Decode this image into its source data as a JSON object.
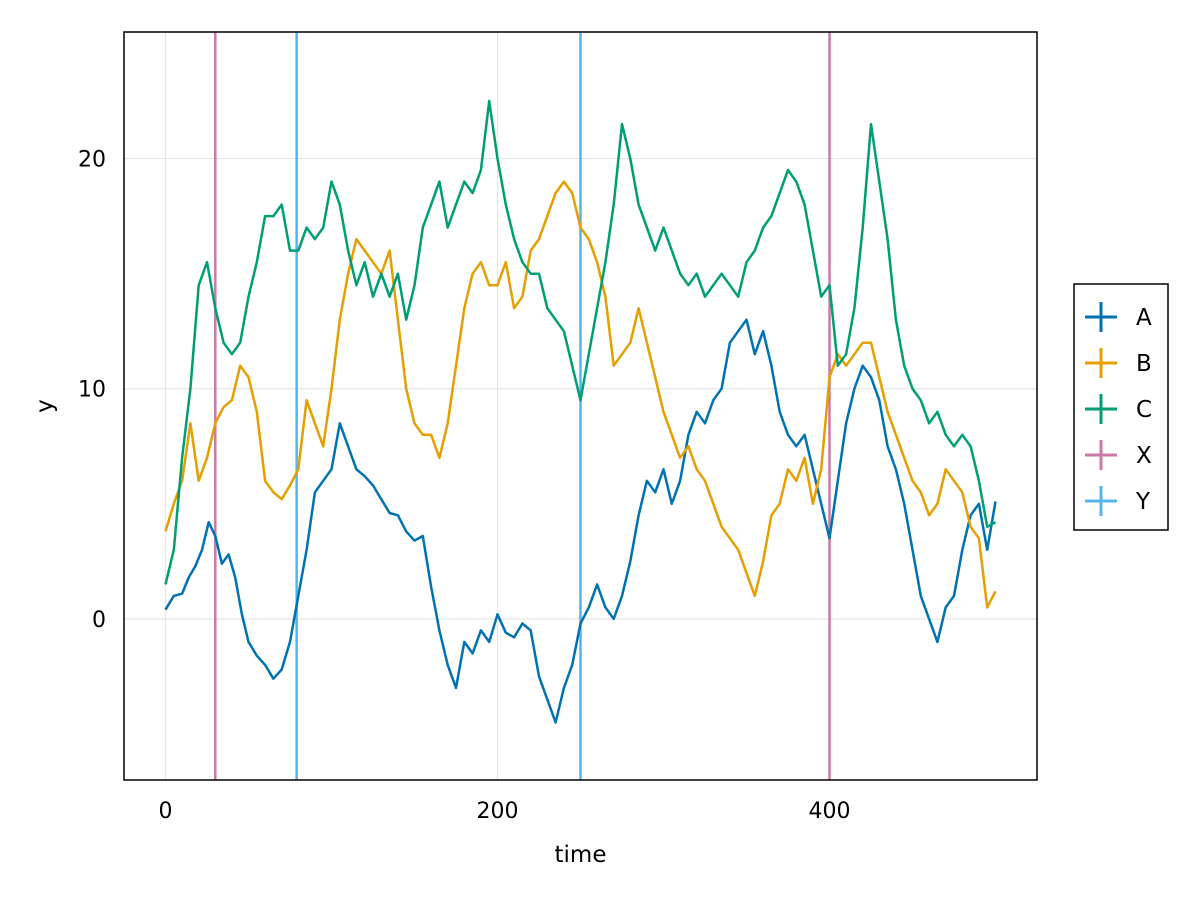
{
  "chart_data": {
    "type": "line",
    "title": "",
    "xlabel": "time",
    "ylabel": "y",
    "xlim": [
      -25,
      525
    ],
    "ylim": [
      -7,
      25.5
    ],
    "xticks": [
      0,
      200,
      400
    ],
    "xtick_labels": [
      "0",
      "200",
      "400"
    ],
    "yticks": [
      0,
      10,
      20
    ],
    "ytick_labels": [
      "0",
      "10",
      "20"
    ],
    "grid": true,
    "legend_position": "right",
    "series": [
      {
        "name": "A",
        "color": "#0072B2",
        "points": [
          [
            0,
            0.4
          ],
          [
            5,
            1.0
          ],
          [
            10,
            1.1
          ],
          [
            14,
            1.8
          ],
          [
            18,
            2.3
          ],
          [
            22,
            3.0
          ],
          [
            26,
            4.2
          ],
          [
            30,
            3.6
          ],
          [
            34,
            2.4
          ],
          [
            38,
            2.8
          ],
          [
            42,
            1.8
          ],
          [
            46,
            0.2
          ],
          [
            50,
            -1.0
          ],
          [
            55,
            -1.6
          ],
          [
            60,
            -2.0
          ],
          [
            65,
            -2.6
          ],
          [
            70,
            -2.2
          ],
          [
            75,
            -1.0
          ],
          [
            80,
            1.0
          ],
          [
            85,
            3.0
          ],
          [
            90,
            5.5
          ],
          [
            95,
            6.0
          ],
          [
            100,
            6.5
          ],
          [
            105,
            8.5
          ],
          [
            110,
            7.5
          ],
          [
            115,
            6.5
          ],
          [
            120,
            6.2
          ],
          [
            125,
            5.8
          ],
          [
            130,
            5.2
          ],
          [
            135,
            4.6
          ],
          [
            140,
            4.5
          ],
          [
            145,
            3.8
          ],
          [
            150,
            3.4
          ],
          [
            155,
            3.6
          ],
          [
            160,
            1.4
          ],
          [
            165,
            -0.5
          ],
          [
            170,
            -2.0
          ],
          [
            175,
            -3.0
          ],
          [
            180,
            -1.0
          ],
          [
            185,
            -1.5
          ],
          [
            190,
            -0.5
          ],
          [
            195,
            -1.0
          ],
          [
            200,
            0.2
          ],
          [
            205,
            -0.6
          ],
          [
            210,
            -0.8
          ],
          [
            215,
            -0.2
          ],
          [
            220,
            -0.5
          ],
          [
            225,
            -2.5
          ],
          [
            230,
            -3.5
          ],
          [
            235,
            -4.5
          ],
          [
            240,
            -3.0
          ],
          [
            245,
            -2.0
          ],
          [
            250,
            -0.2
          ],
          [
            255,
            0.5
          ],
          [
            260,
            1.5
          ],
          [
            265,
            0.5
          ],
          [
            270,
            0.0
          ],
          [
            275,
            1.0
          ],
          [
            280,
            2.5
          ],
          [
            285,
            4.5
          ],
          [
            290,
            6.0
          ],
          [
            295,
            5.5
          ],
          [
            300,
            6.5
          ],
          [
            305,
            5.0
          ],
          [
            310,
            6.0
          ],
          [
            315,
            8.0
          ],
          [
            320,
            9.0
          ],
          [
            325,
            8.5
          ],
          [
            330,
            9.5
          ],
          [
            335,
            10.0
          ],
          [
            340,
            12.0
          ],
          [
            345,
            12.5
          ],
          [
            350,
            13.0
          ],
          [
            355,
            11.5
          ],
          [
            360,
            12.5
          ],
          [
            365,
            11.0
          ],
          [
            370,
            9.0
          ],
          [
            375,
            8.0
          ],
          [
            380,
            7.5
          ],
          [
            385,
            8.0
          ],
          [
            390,
            6.5
          ],
          [
            395,
            5.0
          ],
          [
            400,
            3.5
          ],
          [
            405,
            6.0
          ],
          [
            410,
            8.5
          ],
          [
            415,
            10.0
          ],
          [
            420,
            11.0
          ],
          [
            425,
            10.5
          ],
          [
            430,
            9.5
          ],
          [
            435,
            7.5
          ],
          [
            440,
            6.5
          ],
          [
            445,
            5.0
          ],
          [
            450,
            3.0
          ],
          [
            455,
            1.0
          ],
          [
            460,
            0.0
          ],
          [
            465,
            -1.0
          ],
          [
            470,
            0.5
          ],
          [
            475,
            1.0
          ],
          [
            480,
            3.0
          ],
          [
            485,
            4.5
          ],
          [
            490,
            5.0
          ],
          [
            495,
            3.0
          ],
          [
            500,
            5.1
          ]
        ]
      },
      {
        "name": "B",
        "color": "#E69F00",
        "points": [
          [
            0,
            3.8
          ],
          [
            5,
            5.0
          ],
          [
            10,
            6.0
          ],
          [
            15,
            8.5
          ],
          [
            20,
            6.0
          ],
          [
            25,
            7.0
          ],
          [
            30,
            8.5
          ],
          [
            35,
            9.2
          ],
          [
            40,
            9.5
          ],
          [
            45,
            11.0
          ],
          [
            50,
            10.5
          ],
          [
            55,
            9.0
          ],
          [
            60,
            6.0
          ],
          [
            65,
            5.5
          ],
          [
            70,
            5.2
          ],
          [
            75,
            5.8
          ],
          [
            80,
            6.5
          ],
          [
            85,
            9.5
          ],
          [
            90,
            8.5
          ],
          [
            95,
            7.5
          ],
          [
            100,
            10.0
          ],
          [
            105,
            13.0
          ],
          [
            110,
            15.0
          ],
          [
            115,
            16.5
          ],
          [
            120,
            16.0
          ],
          [
            125,
            15.5
          ],
          [
            130,
            15.0
          ],
          [
            135,
            16.0
          ],
          [
            140,
            13.0
          ],
          [
            145,
            10.0
          ],
          [
            150,
            8.5
          ],
          [
            155,
            8.0
          ],
          [
            160,
            8.0
          ],
          [
            165,
            7.0
          ],
          [
            170,
            8.5
          ],
          [
            175,
            11.0
          ],
          [
            180,
            13.5
          ],
          [
            185,
            15.0
          ],
          [
            190,
            15.5
          ],
          [
            195,
            14.5
          ],
          [
            200,
            14.5
          ],
          [
            205,
            15.5
          ],
          [
            210,
            13.5
          ],
          [
            215,
            14.0
          ],
          [
            220,
            16.0
          ],
          [
            225,
            16.5
          ],
          [
            230,
            17.5
          ],
          [
            235,
            18.5
          ],
          [
            240,
            19.0
          ],
          [
            245,
            18.5
          ],
          [
            250,
            17.0
          ],
          [
            255,
            16.5
          ],
          [
            260,
            15.5
          ],
          [
            265,
            14.0
          ],
          [
            270,
            11.0
          ],
          [
            275,
            11.5
          ],
          [
            280,
            12.0
          ],
          [
            285,
            13.5
          ],
          [
            290,
            12.0
          ],
          [
            295,
            10.5
          ],
          [
            300,
            9.0
          ],
          [
            305,
            8.0
          ],
          [
            310,
            7.0
          ],
          [
            315,
            7.5
          ],
          [
            320,
            6.5
          ],
          [
            325,
            6.0
          ],
          [
            330,
            5.0
          ],
          [
            335,
            4.0
          ],
          [
            340,
            3.5
          ],
          [
            345,
            3.0
          ],
          [
            350,
            2.0
          ],
          [
            355,
            1.0
          ],
          [
            360,
            2.5
          ],
          [
            365,
            4.5
          ],
          [
            370,
            5.0
          ],
          [
            375,
            6.5
          ],
          [
            380,
            6.0
          ],
          [
            385,
            7.0
          ],
          [
            390,
            5.0
          ],
          [
            395,
            6.5
          ],
          [
            400,
            10.5
          ],
          [
            405,
            11.5
          ],
          [
            410,
            11.0
          ],
          [
            415,
            11.5
          ],
          [
            420,
            12.0
          ],
          [
            425,
            12.0
          ],
          [
            430,
            10.5
          ],
          [
            435,
            9.0
          ],
          [
            440,
            8.0
          ],
          [
            445,
            7.0
          ],
          [
            450,
            6.0
          ],
          [
            455,
            5.5
          ],
          [
            460,
            4.5
          ],
          [
            465,
            5.0
          ],
          [
            470,
            6.5
          ],
          [
            475,
            6.0
          ],
          [
            480,
            5.5
          ],
          [
            485,
            4.0
          ],
          [
            490,
            3.5
          ],
          [
            495,
            0.5
          ],
          [
            500,
            1.2
          ]
        ]
      },
      {
        "name": "C",
        "color": "#009E73",
        "points": [
          [
            0,
            1.5
          ],
          [
            5,
            3.0
          ],
          [
            10,
            7.0
          ],
          [
            15,
            10.0
          ],
          [
            20,
            14.5
          ],
          [
            25,
            15.5
          ],
          [
            30,
            13.5
          ],
          [
            35,
            12.0
          ],
          [
            40,
            11.5
          ],
          [
            45,
            12.0
          ],
          [
            50,
            14.0
          ],
          [
            55,
            15.5
          ],
          [
            60,
            17.5
          ],
          [
            65,
            17.5
          ],
          [
            70,
            18.0
          ],
          [
            75,
            16.0
          ],
          [
            80,
            16.0
          ],
          [
            85,
            17.0
          ],
          [
            90,
            16.5
          ],
          [
            95,
            17.0
          ],
          [
            100,
            19.0
          ],
          [
            105,
            18.0
          ],
          [
            110,
            16.0
          ],
          [
            115,
            14.5
          ],
          [
            120,
            15.5
          ],
          [
            125,
            14.0
          ],
          [
            130,
            15.0
          ],
          [
            135,
            14.0
          ],
          [
            140,
            15.0
          ],
          [
            145,
            13.0
          ],
          [
            150,
            14.5
          ],
          [
            155,
            17.0
          ],
          [
            160,
            18.0
          ],
          [
            165,
            19.0
          ],
          [
            170,
            17.0
          ],
          [
            175,
            18.0
          ],
          [
            180,
            19.0
          ],
          [
            185,
            18.5
          ],
          [
            190,
            19.5
          ],
          [
            195,
            22.5
          ],
          [
            200,
            20.0
          ],
          [
            205,
            18.0
          ],
          [
            210,
            16.5
          ],
          [
            215,
            15.5
          ],
          [
            220,
            15.0
          ],
          [
            225,
            15.0
          ],
          [
            230,
            13.5
          ],
          [
            235,
            13.0
          ],
          [
            240,
            12.5
          ],
          [
            245,
            11.0
          ],
          [
            250,
            9.5
          ],
          [
            255,
            11.5
          ],
          [
            260,
            13.5
          ],
          [
            265,
            15.5
          ],
          [
            270,
            18.0
          ],
          [
            275,
            21.5
          ],
          [
            280,
            20.0
          ],
          [
            285,
            18.0
          ],
          [
            290,
            17.0
          ],
          [
            295,
            16.0
          ],
          [
            300,
            17.0
          ],
          [
            305,
            16.0
          ],
          [
            310,
            15.0
          ],
          [
            315,
            14.5
          ],
          [
            320,
            15.0
          ],
          [
            325,
            14.0
          ],
          [
            330,
            14.5
          ],
          [
            335,
            15.0
          ],
          [
            340,
            14.5
          ],
          [
            345,
            14.0
          ],
          [
            350,
            15.5
          ],
          [
            355,
            16.0
          ],
          [
            360,
            17.0
          ],
          [
            365,
            17.5
          ],
          [
            370,
            18.5
          ],
          [
            375,
            19.5
          ],
          [
            380,
            19.0
          ],
          [
            385,
            18.0
          ],
          [
            390,
            16.0
          ],
          [
            395,
            14.0
          ],
          [
            400,
            14.5
          ],
          [
            405,
            11.0
          ],
          [
            410,
            11.5
          ],
          [
            415,
            13.5
          ],
          [
            420,
            17.0
          ],
          [
            425,
            21.5
          ],
          [
            430,
            19.0
          ],
          [
            435,
            16.5
          ],
          [
            440,
            13.0
          ],
          [
            445,
            11.0
          ],
          [
            450,
            10.0
          ],
          [
            455,
            9.5
          ],
          [
            460,
            8.5
          ],
          [
            465,
            9.0
          ],
          [
            470,
            8.0
          ],
          [
            475,
            7.5
          ],
          [
            480,
            8.0
          ],
          [
            485,
            7.5
          ],
          [
            490,
            6.0
          ],
          [
            495,
            4.0
          ],
          [
            500,
            4.2
          ]
        ]
      }
    ],
    "vlines": [
      {
        "name": "X",
        "color": "#CC79A7",
        "x": [
          30,
          400
        ]
      },
      {
        "name": "Y",
        "color": "#56B4E9",
        "x": [
          79,
          250
        ]
      }
    ],
    "legend": [
      {
        "label": "A",
        "color": "#0072B2"
      },
      {
        "label": "B",
        "color": "#E69F00"
      },
      {
        "label": "C",
        "color": "#009E73"
      },
      {
        "label": "X",
        "color": "#CC79A7"
      },
      {
        "label": "Y",
        "color": "#56B4E9"
      }
    ]
  }
}
